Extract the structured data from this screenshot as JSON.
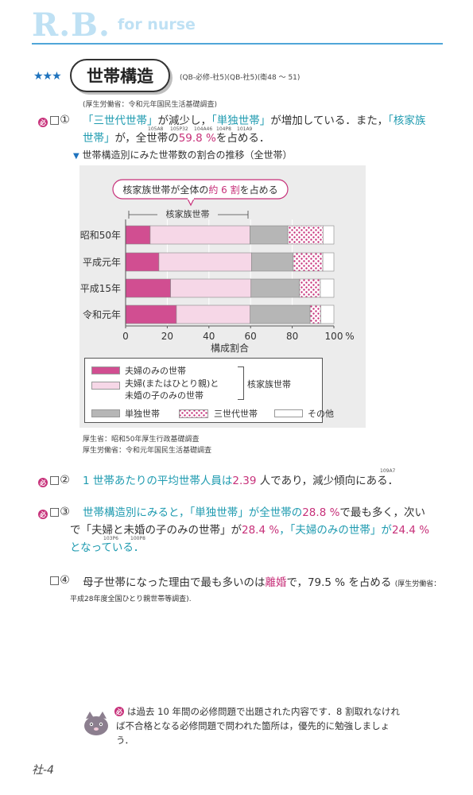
{
  "header": {
    "logo": "R.B.",
    "subtitle": "for nurse"
  },
  "section": {
    "stars": "★★★",
    "title": "世帯構造",
    "refs": "(QB-必修-社5)(QB-社5)(衛48 ～ 51)",
    "source": "(厚生労働省：令和元年国民生活基礎調査)"
  },
  "items": {
    "i1": {
      "mark": "必",
      "num": "□①",
      "p1": "「三世代世帯」",
      "p2": "が減少し，",
      "p3": "「単独世帯」",
      "p4": "が増加している．また，",
      "p5": "「核家族",
      "p6": "世帯」",
      "p7": "が，全世帯の",
      "p8": "59.8 %",
      "p9": "を占める．",
      "sups": [
        "105A8",
        "105P32",
        "104A46",
        "104P8",
        "101A9"
      ]
    },
    "i2": {
      "mark": "必",
      "num": "□②",
      "p1": "1 世帯あたりの平均世帯人員は",
      "p2": "2.39",
      "p3": " 人であり，減少傾向にある．",
      "sup": "109A7"
    },
    "i3": {
      "mark": "必",
      "num": "□③",
      "l1a": "世帯構造別にみると，「単独世帯」が全世帯の",
      "l1b": "28.8 %",
      "l1c": "で最も多く，次い",
      "l2a": "で「夫婦と未婚の子のみの世帯」が",
      "l2b": "28.4 %",
      "l2c": "，「夫婦のみの世帯」が",
      "l2d": "24.4 %",
      "l3": "となっている．",
      "sups": [
        "103P6",
        "100P8"
      ]
    },
    "i4": {
      "num": "□④",
      "a": "母子世帯になった理由で最も多いのは",
      "b": "離婚",
      "c": "で，79.5 % を占める",
      "d": "(厚生労働省：",
      "e": "平成28年度全国ひとり親世帯等調査)."
    }
  },
  "chart_data": {
    "type": "bar",
    "stacked": true,
    "orientation": "horizontal",
    "title": "世帯構造別にみた世帯数の割合の推移（全世帯）",
    "callout": {
      "pre": "核家族世帯が全体の",
      "emph": "約 6 割",
      "post": "を占める"
    },
    "bracket_label": "核家族世帯",
    "categories": [
      "昭和50年",
      "平成元年",
      "平成15年",
      "令和元年"
    ],
    "series": [
      {
        "name": "夫婦のみの世帯",
        "values": [
          11.8,
          16.0,
          21.6,
          24.4
        ],
        "color": "#d14e91"
      },
      {
        "name": "夫婦(またはひとり親)と未婚の子のみの世帯",
        "values": [
          47.9,
          44.5,
          38.6,
          35.4
        ],
        "color": "#f6d7e7"
      },
      {
        "name": "単独世帯",
        "values": [
          18.2,
          20.0,
          23.3,
          28.8
        ],
        "color": "#b6b6b6"
      },
      {
        "name": "三世代世帯",
        "values": [
          16.9,
          14.2,
          10.0,
          5.1
        ],
        "color": "#ffffff",
        "pattern": "dots"
      },
      {
        "name": "その他",
        "values": [
          5.2,
          5.3,
          6.5,
          6.3
        ],
        "color": "#ffffff"
      }
    ],
    "xlim": [
      0,
      100
    ],
    "xticks": [
      "0",
      "20",
      "40",
      "60",
      "80",
      "100"
    ],
    "xunit": "%",
    "xlabel": "構成割合",
    "legend_group": "核家族世帯",
    "legend_labels": {
      "couple": "夫婦のみの世帯",
      "parent_line1": "夫婦(またはひとり親)と",
      "parent_line2": "未婚の子のみの世帯",
      "single": "単独世帯",
      "three_gen": "三世代世帯",
      "other": "その他"
    },
    "sources": [
      "厚生省：昭和50年厚生行政基礎調査",
      "厚生労働省：令和元年国民生活基礎調査"
    ]
  },
  "footer": {
    "tip_mark": "必",
    "tip": "は過去 10 年間の必修問題で出題された内容です．8 割取れなければ不合格となる必修問題で問われた箇所は，優先的に勉強しましょう．",
    "page": "社-4",
    "icon": "cat-icon"
  }
}
